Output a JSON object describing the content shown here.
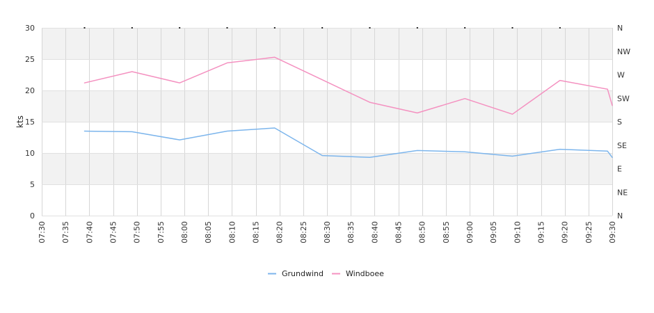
{
  "chart_data": {
    "type": "line",
    "ylabel": "kts",
    "ylim": [
      0,
      30
    ],
    "yticks": [
      0,
      5,
      10,
      15,
      20,
      25,
      30
    ],
    "x_ticks": [
      "07:30",
      "07:35",
      "07:40",
      "07:45",
      "07:50",
      "07:55",
      "08:00",
      "08:05",
      "08:10",
      "08:15",
      "08:20",
      "08:25",
      "08:30",
      "08:35",
      "08:40",
      "08:45",
      "08:50",
      "08:55",
      "09:00",
      "09:05",
      "09:10",
      "09:15",
      "09:20",
      "09:25",
      "09:30"
    ],
    "right_axis_labels": [
      "N",
      "NW",
      "W",
      "SW",
      "S",
      "SE",
      "E",
      "NE",
      "N"
    ],
    "grid": true,
    "legend_position": "bottom",
    "series": [
      {
        "name": "Grundwind",
        "color": "#7cb5ec",
        "x": [
          "07:39",
          "07:49",
          "07:59",
          "08:09",
          "08:19",
          "08:29",
          "08:39",
          "08:49",
          "08:59",
          "09:09",
          "09:19",
          "09:29",
          "09:30"
        ],
        "values": [
          13.5,
          13.4,
          12.1,
          13.5,
          14.0,
          9.6,
          9.3,
          10.4,
          10.2,
          9.5,
          10.6,
          10.3,
          9.3
        ]
      },
      {
        "name": "Windboee",
        "color": "#f491c0",
        "x": [
          "07:39",
          "07:49",
          "07:59",
          "08:09",
          "08:19",
          "08:29",
          "08:39",
          "08:49",
          "08:59",
          "09:09",
          "09:19",
          "09:29",
          "09:30"
        ],
        "values": [
          21.2,
          23.0,
          21.2,
          24.4,
          25.3,
          21.7,
          18.1,
          16.4,
          18.7,
          16.2,
          21.6,
          20.2,
          17.6
        ]
      }
    ],
    "direction_marks_minutes": [
      9,
      19,
      29,
      39,
      49,
      59,
      69,
      79,
      89,
      99,
      109
    ]
  }
}
